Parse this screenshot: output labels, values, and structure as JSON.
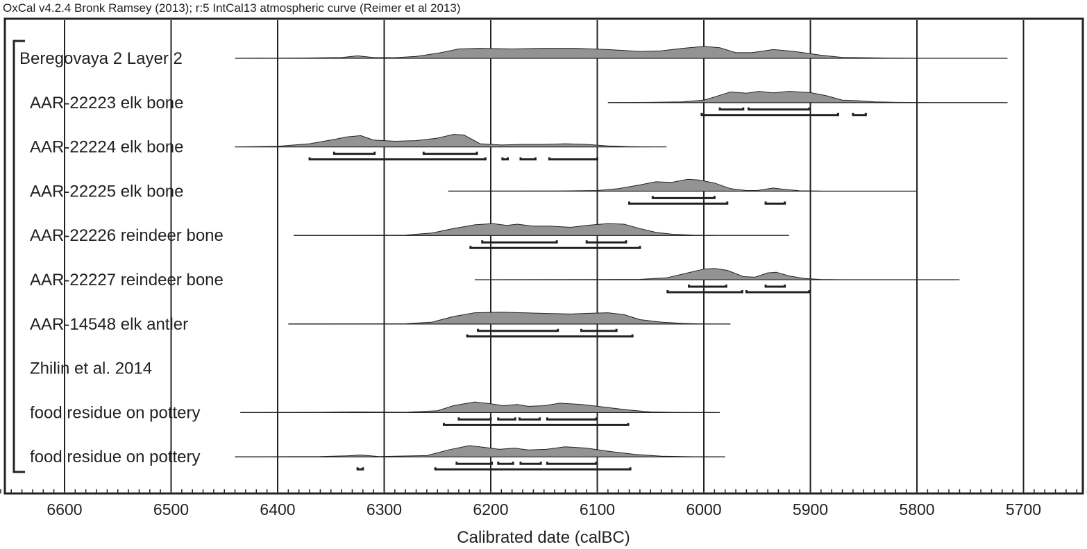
{
  "header": {
    "text": "OxCal v4.2.4 Bronk Ramsey (2013); r:5 IntCal13 atmospheric curve (Reimer et al 2013)"
  },
  "chart_data": {
    "type": "area",
    "xlabel": "Calibrated date (calBC)",
    "x_axis_reversed": true,
    "xlim": [
      6660,
      5640
    ],
    "x_ticks": [
      6600,
      6500,
      6400,
      6300,
      6200,
      6100,
      6000,
      5900,
      5800,
      5700
    ],
    "grid": true,
    "colors": {
      "distribution": "#939393",
      "line": "#222222"
    },
    "rows": [
      {
        "label": "Beregovaya 2 Layer 2",
        "range": [
          6440,
          5715
        ],
        "distribution": [
          [
            6440,
            0
          ],
          [
            6380,
            0.02
          ],
          [
            6340,
            0.06
          ],
          [
            6325,
            0.2
          ],
          [
            6310,
            0.06
          ],
          [
            6290,
            0.05
          ],
          [
            6270,
            0.15
          ],
          [
            6250,
            0.4
          ],
          [
            6230,
            0.75
          ],
          [
            6210,
            0.8
          ],
          [
            6180,
            0.75
          ],
          [
            6150,
            0.8
          ],
          [
            6120,
            0.8
          ],
          [
            6090,
            0.7
          ],
          [
            6060,
            0.55
          ],
          [
            6040,
            0.6
          ],
          [
            6020,
            0.8
          ],
          [
            6000,
            0.95
          ],
          [
            5985,
            0.85
          ],
          [
            5970,
            0.45
          ],
          [
            5955,
            0.45
          ],
          [
            5935,
            0.7
          ],
          [
            5915,
            0.55
          ],
          [
            5890,
            0.25
          ],
          [
            5870,
            0.07
          ],
          [
            5850,
            0.05
          ],
          [
            5830,
            0.02
          ],
          [
            5800,
            0
          ]
        ],
        "hpd_68": [],
        "hpd_95": []
      },
      {
        "label": "AAR-22223 elk bone",
        "range": [
          6090,
          5715
        ],
        "distribution": [
          [
            6090,
            0
          ],
          [
            6050,
            0.02
          ],
          [
            6020,
            0.06
          ],
          [
            6000,
            0.2
          ],
          [
            5990,
            0.45
          ],
          [
            5975,
            0.85
          ],
          [
            5960,
            0.75
          ],
          [
            5948,
            0.9
          ],
          [
            5935,
            0.78
          ],
          [
            5920,
            0.9
          ],
          [
            5900,
            0.8
          ],
          [
            5885,
            0.55
          ],
          [
            5870,
            0.2
          ],
          [
            5855,
            0.15
          ],
          [
            5840,
            0.06
          ],
          [
            5820,
            0.02
          ],
          [
            5790,
            0
          ]
        ],
        "hpd_68": [
          [
            5985,
            5963
          ],
          [
            5958,
            5901
          ]
        ],
        "hpd_95": [
          [
            6002,
            5874
          ],
          [
            5860,
            5848
          ]
        ]
      },
      {
        "label": "AAR-22224 elk bone",
        "range": [
          6440,
          6035
        ],
        "distribution": [
          [
            6440,
            0
          ],
          [
            6400,
            0.05
          ],
          [
            6370,
            0.25
          ],
          [
            6350,
            0.55
          ],
          [
            6335,
            0.8
          ],
          [
            6322,
            0.9
          ],
          [
            6310,
            0.55
          ],
          [
            6290,
            0.45
          ],
          [
            6270,
            0.5
          ],
          [
            6250,
            0.7
          ],
          [
            6235,
            1.0
          ],
          [
            6225,
            0.95
          ],
          [
            6210,
            0.25
          ],
          [
            6190,
            0.15
          ],
          [
            6170,
            0.2
          ],
          [
            6150,
            0.2
          ],
          [
            6130,
            0.25
          ],
          [
            6110,
            0.2
          ],
          [
            6090,
            0.08
          ],
          [
            6070,
            0.02
          ],
          [
            6050,
            0
          ]
        ],
        "hpd_68": [
          [
            6347,
            6309
          ],
          [
            6263,
            6213
          ]
        ],
        "hpd_95": [
          [
            6370,
            6205
          ],
          [
            6189,
            6184
          ],
          [
            6172,
            6158
          ],
          [
            6145,
            6100
          ]
        ]
      },
      {
        "label": "AAR-22225 elk bone",
        "range": [
          6240,
          5800
        ],
        "distribution": [
          [
            6240,
            0
          ],
          [
            6140,
            0.01
          ],
          [
            6100,
            0.05
          ],
          [
            6080,
            0.2
          ],
          [
            6060,
            0.5
          ],
          [
            6045,
            0.75
          ],
          [
            6030,
            0.7
          ],
          [
            6015,
            0.95
          ],
          [
            6005,
            0.9
          ],
          [
            5990,
            0.65
          ],
          [
            5975,
            0.2
          ],
          [
            5960,
            0.05
          ],
          [
            5950,
            0.05
          ],
          [
            5935,
            0.25
          ],
          [
            5925,
            0.15
          ],
          [
            5910,
            0.03
          ],
          [
            5890,
            0
          ]
        ],
        "hpd_68": [
          [
            6048,
            5990
          ]
        ],
        "hpd_95": [
          [
            6070,
            5978
          ],
          [
            5942,
            5924
          ]
        ]
      },
      {
        "label": "AAR-22226 reindeer bone",
        "range": [
          6385,
          5920
        ],
        "distribution": [
          [
            6385,
            0
          ],
          [
            6280,
            0.02
          ],
          [
            6255,
            0.2
          ],
          [
            6235,
            0.55
          ],
          [
            6215,
            0.85
          ],
          [
            6198,
            0.95
          ],
          [
            6185,
            0.8
          ],
          [
            6175,
            0.9
          ],
          [
            6160,
            0.75
          ],
          [
            6145,
            0.75
          ],
          [
            6125,
            0.65
          ],
          [
            6110,
            0.8
          ],
          [
            6090,
            0.95
          ],
          [
            6075,
            0.9
          ],
          [
            6060,
            0.55
          ],
          [
            6045,
            0.25
          ],
          [
            6030,
            0.1
          ],
          [
            6010,
            0.02
          ],
          [
            5990,
            0
          ]
        ],
        "hpd_68": [
          [
            6208,
            6138
          ],
          [
            6110,
            6073
          ]
        ],
        "hpd_95": [
          [
            6219,
            6060
          ]
        ]
      },
      {
        "label": "AAR-22227 reindeer bone",
        "range": [
          6215,
          5760
        ],
        "distribution": [
          [
            6215,
            0
          ],
          [
            6100,
            0.01
          ],
          [
            6060,
            0.03
          ],
          [
            6035,
            0.15
          ],
          [
            6015,
            0.55
          ],
          [
            6000,
            0.85
          ],
          [
            5990,
            0.9
          ],
          [
            5978,
            0.75
          ],
          [
            5963,
            0.25
          ],
          [
            5952,
            0.2
          ],
          [
            5940,
            0.55
          ],
          [
            5932,
            0.6
          ],
          [
            5920,
            0.3
          ],
          [
            5905,
            0.1
          ],
          [
            5890,
            0.02
          ],
          [
            5870,
            0
          ]
        ],
        "hpd_68": [
          [
            6014,
            5979
          ],
          [
            5942,
            5924
          ]
        ],
        "hpd_95": [
          [
            6034,
            5964
          ],
          [
            5960,
            5901
          ]
        ]
      },
      {
        "label": "AAR-14548 elk antler",
        "range": [
          6390,
          5975
        ],
        "distribution": [
          [
            6390,
            0
          ],
          [
            6280,
            0.02
          ],
          [
            6255,
            0.15
          ],
          [
            6235,
            0.6
          ],
          [
            6215,
            0.9
          ],
          [
            6190,
            0.95
          ],
          [
            6170,
            0.9
          ],
          [
            6150,
            0.85
          ],
          [
            6125,
            0.8
          ],
          [
            6110,
            0.85
          ],
          [
            6090,
            0.9
          ],
          [
            6075,
            0.75
          ],
          [
            6060,
            0.35
          ],
          [
            6040,
            0.15
          ],
          [
            6020,
            0.05
          ],
          [
            6000,
            0
          ]
        ],
        "hpd_68": [
          [
            6212,
            6137
          ],
          [
            6115,
            6082
          ]
        ],
        "hpd_95": [
          [
            6222,
            6067
          ]
        ]
      },
      {
        "label": "Zhilin et al. 2014",
        "range": null,
        "distribution": [],
        "hpd_68": [],
        "hpd_95": []
      },
      {
        "label": "food residue on pottery",
        "range": [
          6435,
          5985
        ],
        "distribution": [
          [
            6435,
            0
          ],
          [
            6360,
            0.02
          ],
          [
            6325,
            0.05
          ],
          [
            6280,
            0.02
          ],
          [
            6250,
            0.15
          ],
          [
            6235,
            0.55
          ],
          [
            6215,
            0.85
          ],
          [
            6200,
            0.7
          ],
          [
            6188,
            0.55
          ],
          [
            6175,
            0.65
          ],
          [
            6165,
            0.5
          ],
          [
            6150,
            0.55
          ],
          [
            6135,
            0.75
          ],
          [
            6115,
            0.65
          ],
          [
            6095,
            0.45
          ],
          [
            6070,
            0.2
          ],
          [
            6050,
            0.05
          ],
          [
            6020,
            0.01
          ],
          [
            5990,
            0
          ]
        ],
        "hpd_68": [
          [
            6230,
            6200
          ],
          [
            6193,
            6177
          ],
          [
            6173,
            6154
          ],
          [
            6147,
            6101
          ]
        ],
        "hpd_95": [
          [
            6244,
            6071
          ]
        ]
      },
      {
        "label": "food residue on pottery",
        "range": [
          6440,
          5980
        ],
        "distribution": [
          [
            6440,
            0
          ],
          [
            6360,
            0.02
          ],
          [
            6335,
            0.08
          ],
          [
            6322,
            0.15
          ],
          [
            6305,
            0.03
          ],
          [
            6260,
            0.1
          ],
          [
            6240,
            0.55
          ],
          [
            6220,
            0.9
          ],
          [
            6205,
            0.75
          ],
          [
            6192,
            0.6
          ],
          [
            6178,
            0.7
          ],
          [
            6165,
            0.55
          ],
          [
            6148,
            0.6
          ],
          [
            6130,
            0.8
          ],
          [
            6110,
            0.7
          ],
          [
            6090,
            0.45
          ],
          [
            6065,
            0.2
          ],
          [
            6040,
            0.05
          ],
          [
            6010,
            0.01
          ],
          [
            5985,
            0
          ]
        ],
        "hpd_68": [
          [
            6232,
            6199
          ],
          [
            6193,
            6179
          ],
          [
            6172,
            6153
          ],
          [
            6147,
            6101
          ]
        ],
        "hpd_95": [
          [
            6325,
            6320
          ],
          [
            6252,
            6069
          ]
        ]
      }
    ]
  }
}
